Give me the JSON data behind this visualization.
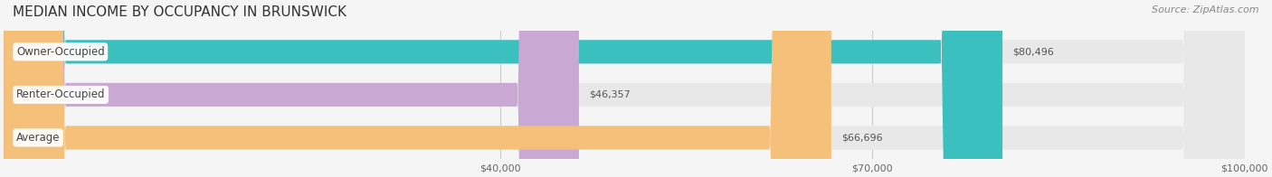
{
  "title": "MEDIAN INCOME BY OCCUPANCY IN BRUNSWICK",
  "source_text": "Source: ZipAtlas.com",
  "categories": [
    "Owner-Occupied",
    "Renter-Occupied",
    "Average"
  ],
  "values": [
    80496,
    46357,
    66696
  ],
  "bar_colors": [
    "#3bbfbf",
    "#c9a8d4",
    "#f5c07a"
  ],
  "bar_labels": [
    "$80,496",
    "$46,357",
    "$66,696"
  ],
  "xlim": [
    0,
    100000
  ],
  "xticks": [
    0,
    40000,
    70000,
    100000
  ],
  "xtick_labels": [
    "",
    "$40,000",
    "$70,000",
    "$100,000"
  ],
  "background_color": "#f5f5f5",
  "bar_background_color": "#e8e8e8",
  "label_bg_color": "#ffffff",
  "title_fontsize": 11,
  "source_fontsize": 8,
  "bar_height": 0.55,
  "figsize": [
    14.06,
    1.96
  ],
  "dpi": 100
}
